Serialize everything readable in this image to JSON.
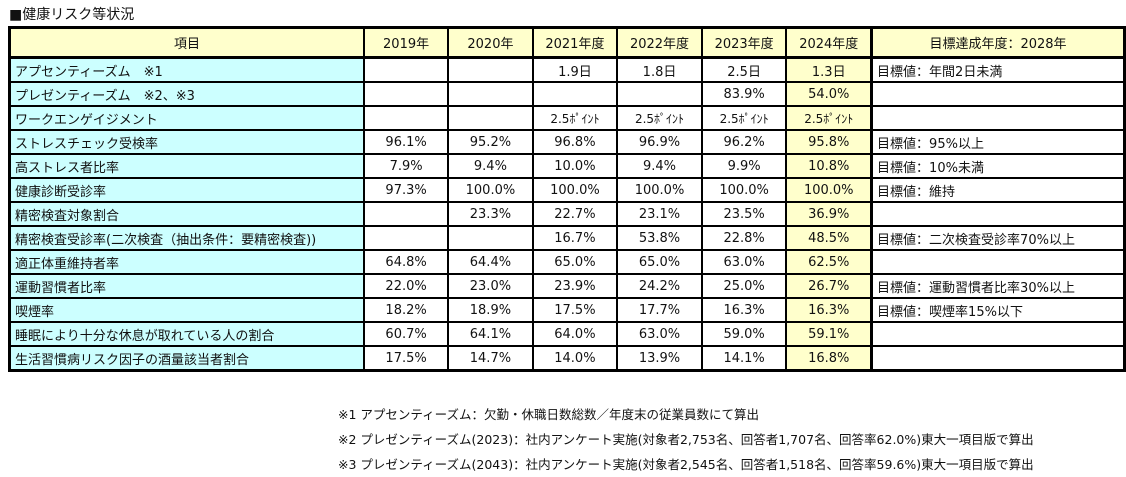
{
  "title": "■健康リスク等状況",
  "headers": [
    "項目",
    "2019年",
    "2020年",
    "2021年度",
    "2022年度",
    "2023年度",
    "2024年度",
    "目標達成年度：2028年"
  ],
  "rows": [
    {
      "item": "アプセンティーズム　※1",
      "values": [
        "",
        "",
        "1.9日",
        "1.8日",
        "2.5日",
        "1.3日"
      ],
      "goal": "目標値：年間2日未満"
    },
    {
      "item": "プレゼンティーズム　※2、※3",
      "values": [
        "",
        "",
        "",
        "",
        "83.9%",
        "54.0%"
      ],
      "goal": ""
    },
    {
      "item": "ワークエンゲイジメント",
      "values": [
        "",
        "",
        "2.5ﾎﾟｲﾝﾄ",
        "2.5ﾎﾟｲﾝﾄ",
        "2.5ﾎﾟｲﾝﾄ",
        "2.5ﾎﾟｲﾝﾄ"
      ],
      "goal": ""
    },
    {
      "item": "ストレスチェック受検率",
      "values": [
        "96.1%",
        "95.2%",
        "96.8%",
        "96.9%",
        "96.2%",
        "95.8%"
      ],
      "goal": "目標値：95%以上"
    },
    {
      "item": "高ストレス者比率",
      "values": [
        "7.9%",
        "9.4%",
        "10.0%",
        "9.4%",
        "9.9%",
        "10.8%"
      ],
      "goal": "目標値：10%未満"
    },
    {
      "item": "健康診断受診率",
      "values": [
        "97.3%",
        "100.0%",
        "100.0%",
        "100.0%",
        "100.0%",
        "100.0%"
      ],
      "goal": "目標値：維持"
    },
    {
      "item": "精密検査対象割合",
      "values": [
        "",
        "23.3%",
        "22.7%",
        "23.1%",
        "23.5%",
        "36.9%"
      ],
      "goal": ""
    },
    {
      "item": "精密検査受診率(二次検査（抽出条件：要精密検査))",
      "values": [
        "",
        "",
        "16.7%",
        "53.8%",
        "22.8%",
        "48.5%"
      ],
      "goal": "目標値：二次検査受診率70%以上"
    },
    {
      "item": "適正体重維持者率",
      "values": [
        "64.8%",
        "64.4%",
        "65.0%",
        "65.0%",
        "63.0%",
        "62.5%"
      ],
      "goal": ""
    },
    {
      "item": "運動習慣者比率",
      "values": [
        "22.0%",
        "23.0%",
        "23.9%",
        "24.2%",
        "25.0%",
        "26.7%"
      ],
      "goal": "目標値：運動習慣者比率30%以上"
    },
    {
      "item": "喫煙率",
      "values": [
        "18.2%",
        "18.9%",
        "17.5%",
        "17.7%",
        "16.3%",
        "16.3%"
      ],
      "goal": "目標値：喫煙率15%以下"
    },
    {
      "item": "睡眠により十分な休息が取れている人の割合",
      "values": [
        "60.7%",
        "64.1%",
        "64.0%",
        "63.0%",
        "59.0%",
        "59.1%"
      ],
      "goal": ""
    },
    {
      "item": "生活習慣病リスク因子の酒量該当者割合",
      "values": [
        "17.5%",
        "14.7%",
        "14.0%",
        "13.9%",
        "14.1%",
        "16.8%"
      ],
      "goal": ""
    }
  ],
  "notes": [
    "※1 アプセンティーズム：欠勤・休職日数総数／年度末の従業員数にて算出",
    "※2 プレゼンティーズム(2023)：社内アンケート実施(対象者2,753名、回答者1,707名、回答率62.0%)東大一項目版で算出",
    "※3 プレゼンティーズム(2043)：社内アンケート実施(対象者2,545名、回答者1,518名、回答率59.6%)東大一項目版で算出"
  ],
  "colors": {
    "header_bg": "#ffffcc",
    "item_bg": "#ccffff",
    "highlight_2024": "#ffffcc"
  }
}
